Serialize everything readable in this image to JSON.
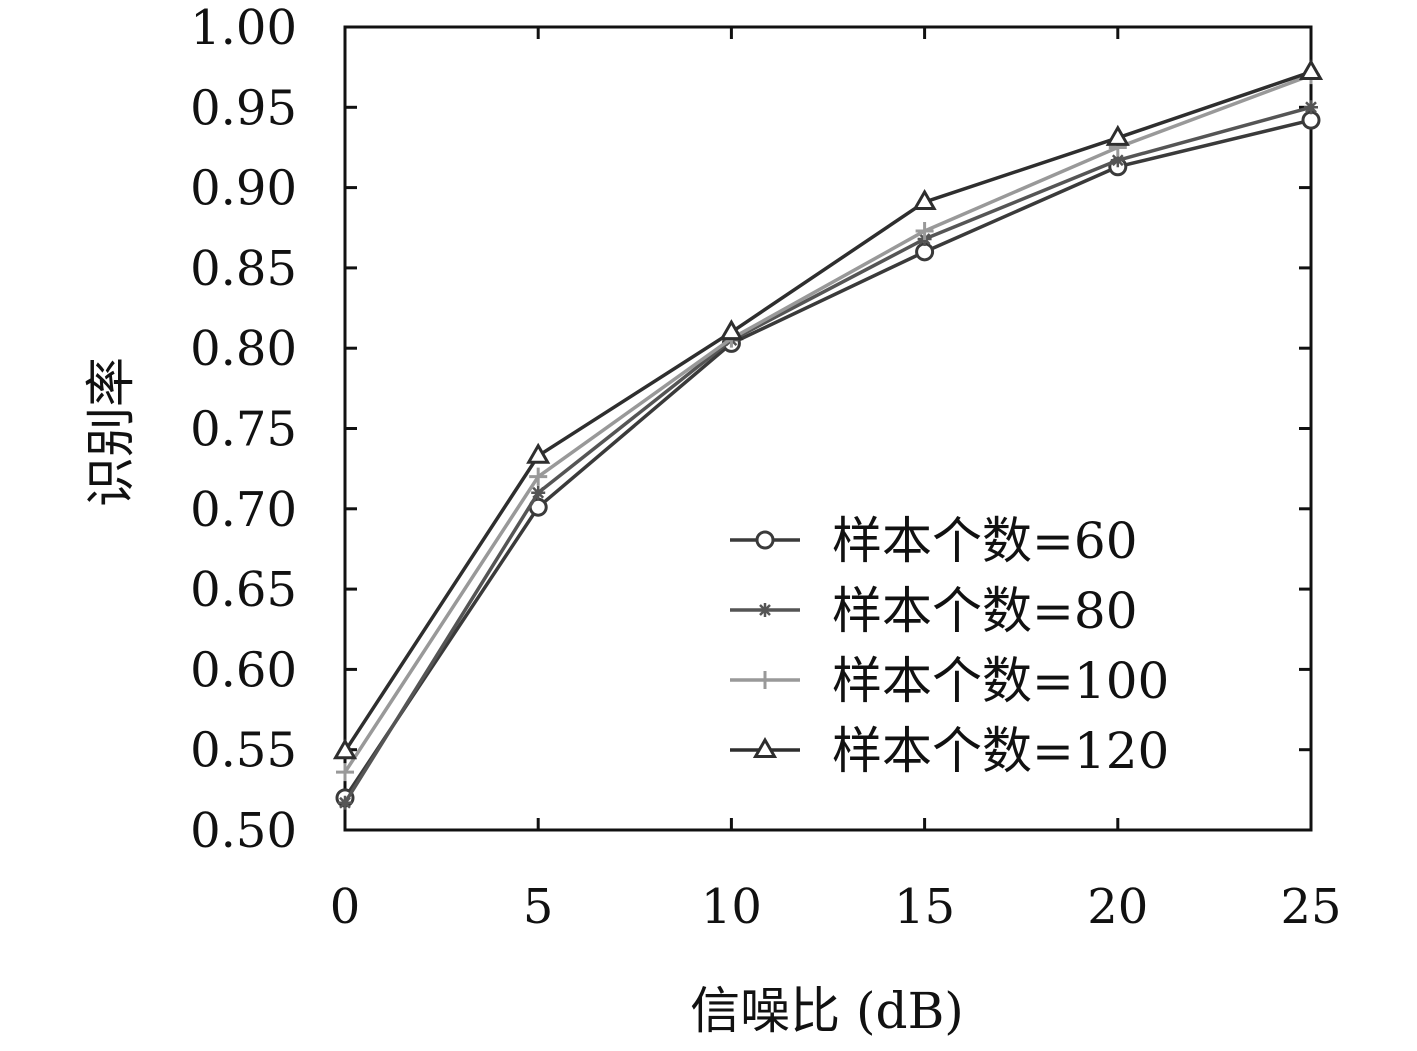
{
  "chart_data": {
    "type": "line",
    "xlabel": "信噪比 (dB)",
    "ylabel": "识别率",
    "x": [
      0,
      5,
      10,
      15,
      20,
      25
    ],
    "xlim": [
      0,
      25
    ],
    "ylim": [
      0.5,
      1.0
    ],
    "x_ticks": [
      "0",
      "5",
      "10",
      "15",
      "20",
      "25"
    ],
    "y_ticks": [
      "0.50",
      "0.55",
      "0.60",
      "0.65",
      "0.70",
      "0.75",
      "0.80",
      "0.85",
      "0.90",
      "0.95",
      "1.00"
    ],
    "grid": false,
    "legend_position": "bottom-right",
    "series": [
      {
        "name": "样本个数=60",
        "marker": "circle",
        "color": "#3a3a3a",
        "values": [
          0.52,
          0.701,
          0.803,
          0.86,
          0.913,
          0.942
        ]
      },
      {
        "name": "样本个数=80",
        "marker": "asterisk",
        "color": "#555555",
        "values": [
          0.517,
          0.71,
          0.805,
          0.868,
          0.917,
          0.95
        ]
      },
      {
        "name": "样本个数=100",
        "marker": "plus",
        "color": "#999999",
        "values": [
          0.536,
          0.72,
          0.806,
          0.873,
          0.925,
          0.97
        ]
      },
      {
        "name": "样本个数=120",
        "marker": "triangle",
        "color": "#2e2e2e",
        "values": [
          0.549,
          0.733,
          0.81,
          0.891,
          0.931,
          0.972
        ]
      }
    ]
  }
}
